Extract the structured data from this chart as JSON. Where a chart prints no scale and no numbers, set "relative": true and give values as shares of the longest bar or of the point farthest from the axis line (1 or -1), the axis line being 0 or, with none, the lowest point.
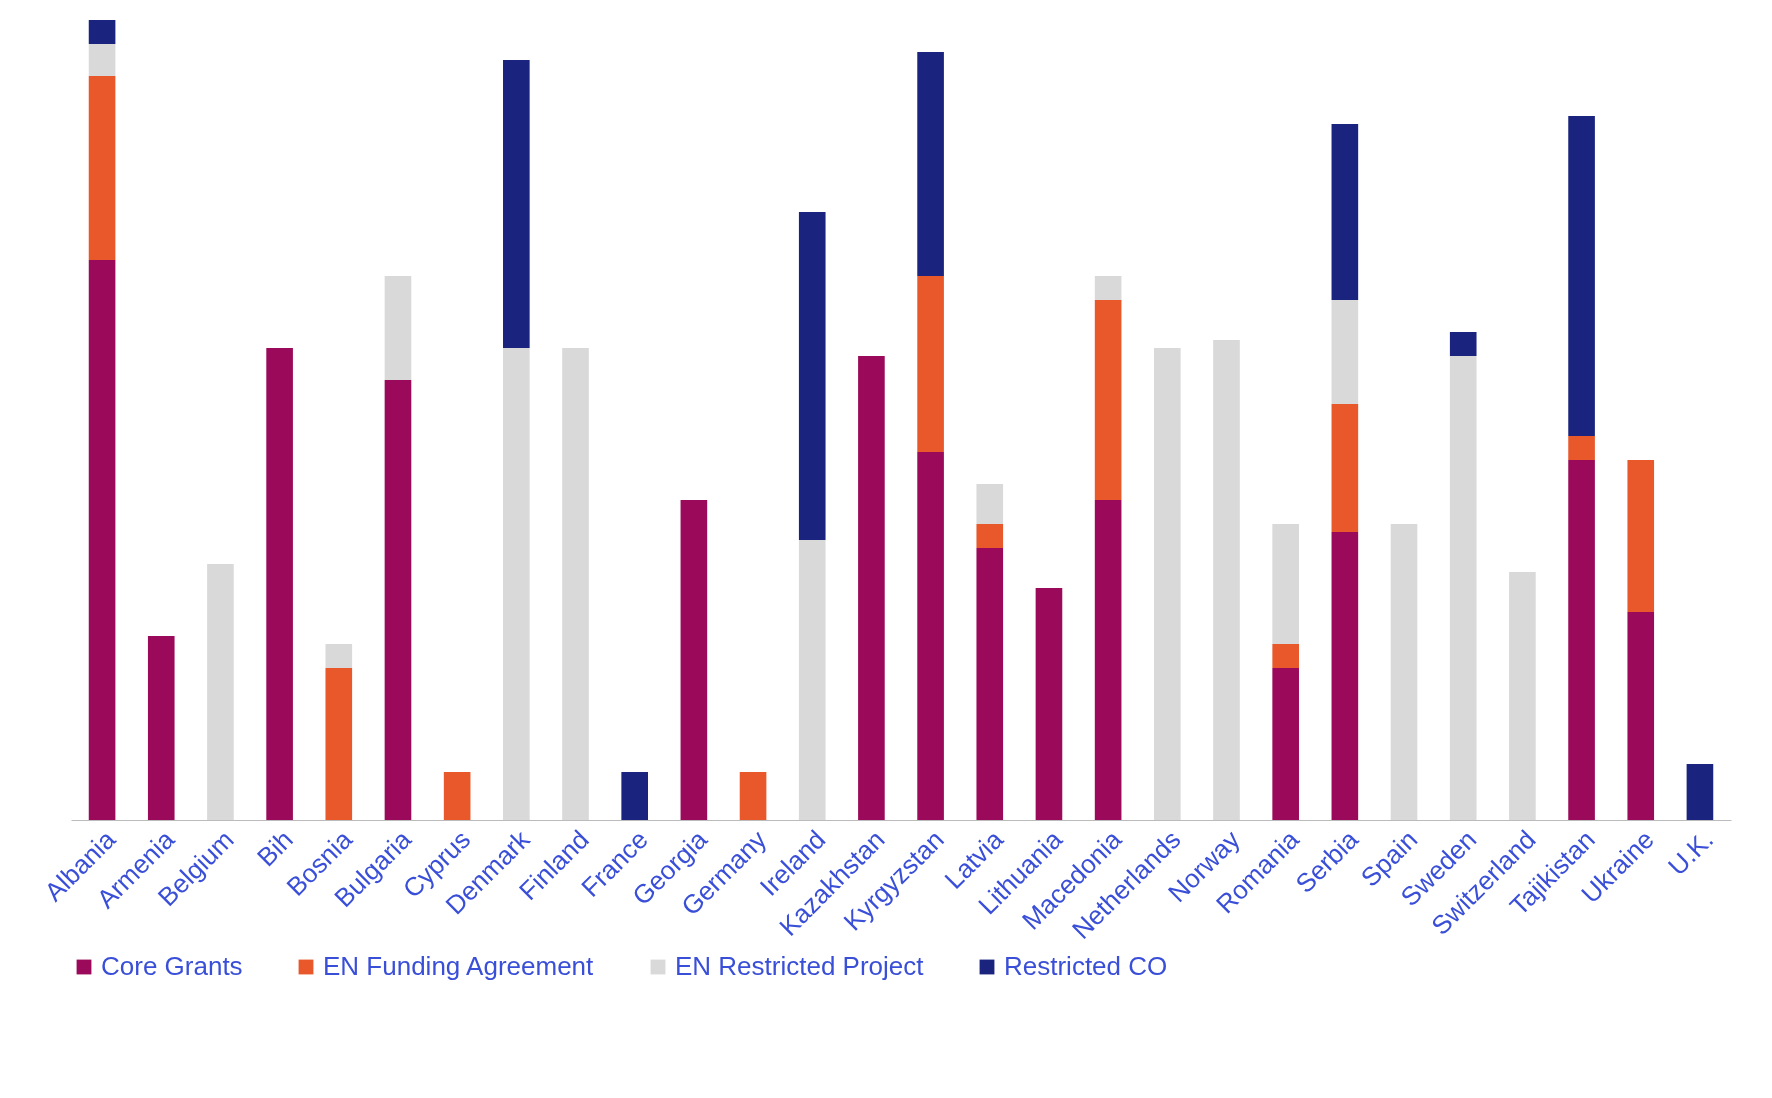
{
  "chart_data": {
    "type": "bar",
    "stacked": true,
    "relative": true,
    "legend": "bottom",
    "categories": [
      "Albania",
      "Armenia",
      "Belgium",
      "Bih",
      "Bosnia",
      "Bulgaria",
      "Cyprus",
      "Denmark",
      "Finland",
      "France",
      "Georgia",
      "Germany",
      "Ireland",
      "Kazakhstan",
      "Kyrgyzstan",
      "Latvia",
      "Lithuania",
      "Macedonia",
      "Netherlands",
      "Norway",
      "Romania",
      "Serbia",
      "Spain",
      "Sweden",
      "Switzerland",
      "Tajikistan",
      "Ukraine",
      "U.K."
    ],
    "series": [
      {
        "name": "Core Grants",
        "color": "#9b0a5a",
        "values": [
          0.7,
          0.23,
          null,
          0.59,
          null,
          0.55,
          null,
          null,
          null,
          null,
          0.4,
          null,
          null,
          0.58,
          0.46,
          0.34,
          0.29,
          0.4,
          null,
          null,
          0.19,
          0.36,
          null,
          null,
          null,
          0.45,
          0.26,
          null
        ]
      },
      {
        "name": "EN Funding Agreement",
        "color": "#e8582a",
        "values": [
          0.23,
          null,
          null,
          null,
          0.19,
          null,
          0.06,
          null,
          null,
          null,
          null,
          0.06,
          null,
          null,
          0.22,
          0.03,
          null,
          0.25,
          null,
          null,
          0.03,
          0.16,
          null,
          null,
          null,
          0.03,
          0.19,
          null
        ]
      },
      {
        "name": "EN Restricted Project",
        "color": "#d9d9d9",
        "values": [
          0.04,
          null,
          0.32,
          null,
          0.03,
          0.13,
          null,
          0.59,
          0.59,
          null,
          null,
          null,
          0.35,
          null,
          null,
          0.05,
          null,
          0.03,
          0.59,
          0.6,
          0.15,
          0.13,
          0.37,
          0.58,
          0.31,
          null,
          null,
          null
        ]
      },
      {
        "name": "Restricted CO",
        "color": "#1a237e",
        "values": [
          0.03,
          null,
          null,
          null,
          null,
          null,
          null,
          0.36,
          null,
          0.06,
          null,
          null,
          0.41,
          null,
          0.28,
          null,
          null,
          null,
          null,
          null,
          null,
          0.22,
          null,
          0.03,
          null,
          0.4,
          null,
          0.07
        ]
      }
    ]
  }
}
